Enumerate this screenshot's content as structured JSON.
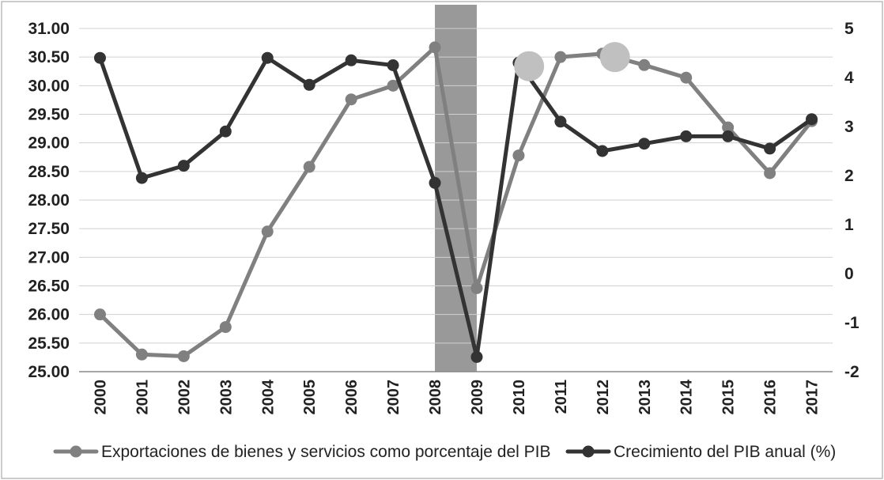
{
  "chart_data": {
    "type": "line",
    "categories": [
      "2000",
      "2001",
      "2002",
      "2003",
      "2004",
      "2005",
      "2006",
      "2007",
      "2008",
      "2009",
      "2010",
      "2011",
      "2012",
      "2013",
      "2014",
      "2015",
      "2016",
      "2017"
    ],
    "y_left": {
      "min": 25.0,
      "max": 31.0,
      "step": 0.5,
      "tick_labels": [
        "25.00",
        "25.50",
        "26.00",
        "26.50",
        "27.00",
        "27.50",
        "28.00",
        "28.50",
        "29.00",
        "29.50",
        "30.00",
        "30.50",
        "31.00"
      ]
    },
    "y_right": {
      "min": -2,
      "max": 5,
      "step": 1,
      "tick_labels": [
        "-2",
        "-1",
        "0",
        "1",
        "2",
        "3",
        "4",
        "5"
      ]
    },
    "grid": true,
    "legend_position": "bottom",
    "shaded_region": {
      "from": "2008",
      "to": "2009",
      "color": "#999999"
    },
    "series": [
      {
        "name": "Exportaciones de bienes y servicios como porcentaje del PIB",
        "axis": "left",
        "color": "#808080",
        "values": [
          26.0,
          25.3,
          25.27,
          25.78,
          27.45,
          28.58,
          29.76,
          30.0,
          30.67,
          26.46,
          28.78,
          30.5,
          30.56,
          30.36,
          30.14,
          29.27,
          28.47,
          29.38
        ]
      },
      {
        "name": "Crecimiento del PIB anual (%)",
        "axis": "right",
        "color": "#333333",
        "values": [
          4.4,
          1.95,
          2.2,
          2.9,
          4.4,
          3.85,
          4.35,
          4.25,
          1.85,
          -1.7,
          4.3,
          3.1,
          2.5,
          2.65,
          2.8,
          2.8,
          2.55,
          3.15
        ]
      }
    ],
    "highlight_markers": [
      {
        "x": "2010",
        "offset": 0.75,
        "value": 30.34,
        "axis": "left",
        "color": "#c0c0c0"
      },
      {
        "x": "2012",
        "offset": 0.8,
        "value": 30.5,
        "axis": "left",
        "color": "#c0c0c0"
      }
    ]
  }
}
